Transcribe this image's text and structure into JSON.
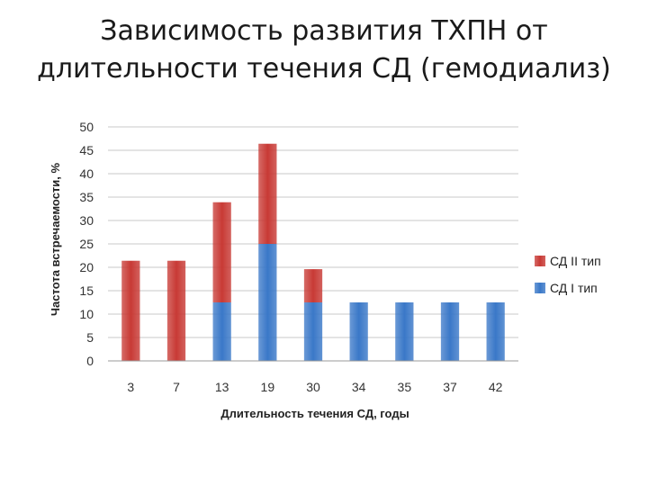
{
  "title_lines": [
    "Зависимость развития ТХПН от",
    "длительности течения СД (гемодиализ)"
  ],
  "chart_data": {
    "type": "bar",
    "stacked": true,
    "categories": [
      "3",
      "7",
      "13",
      "19",
      "30",
      "34",
      "35",
      "37",
      "42"
    ],
    "series": [
      {
        "name": "СД I тип",
        "color": "#3a78c8",
        "values": [
          0,
          0,
          12.5,
          25,
          12.5,
          12.5,
          12.5,
          12.5,
          12.5
        ]
      },
      {
        "name": "СД II тип",
        "color": "#c83a35",
        "values": [
          21.4,
          21.4,
          21.4,
          21.4,
          7.1,
          0,
          0,
          0,
          0
        ]
      }
    ],
    "xlabel": "Длительность течения СД, годы",
    "ylabel": "Частота встречаемости, %",
    "ylim": [
      0,
      50
    ],
    "yticks": [
      "0",
      "5",
      "10",
      "15",
      "20",
      "25",
      "30",
      "35",
      "40",
      "45",
      "50"
    ],
    "grid": true,
    "legend_position": "right",
    "legend_order": [
      "СД II тип",
      "СД I тип"
    ]
  }
}
